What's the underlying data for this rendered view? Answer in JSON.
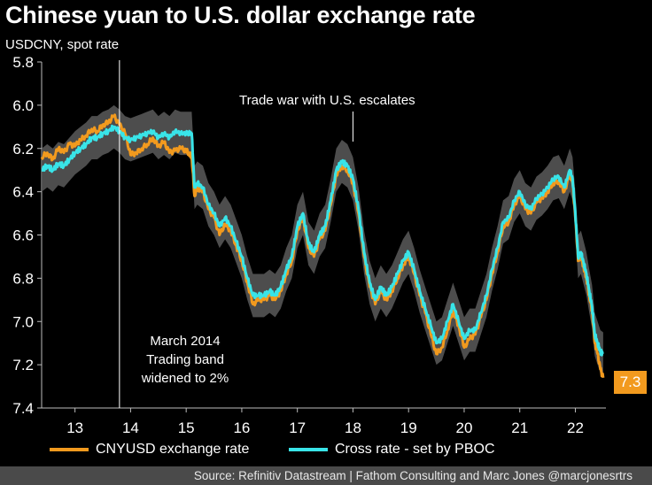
{
  "title": "Chinese yuan to U.S. dollar exchange rate",
  "subtitle": "USDCNY, spot rate",
  "annotations": {
    "trade_war": "Trade war with U.S. escalates",
    "march_2014_line1": "March 2014",
    "march_2014_line2": "Trading band",
    "march_2014_line3": "widened to 2%"
  },
  "last_value_label": "7.3",
  "legend": [
    {
      "label": "CNYUSD exchange rate",
      "color": "#f29a1e"
    },
    {
      "label": "Cross rate - set by PBOC",
      "color": "#39e4e8"
    }
  ],
  "source": "Source: Refinitiv Datastream | Fathom Consulting and Marc Jones @marcjonesrtrs",
  "chart_data": {
    "type": "line",
    "y_axis_inverted": true,
    "ylim": [
      5.8,
      7.4
    ],
    "yticks": [
      "5.8",
      "6.0",
      "6.2",
      "6.4",
      "6.6",
      "6.8",
      "7.0",
      "7.2",
      "7.4"
    ],
    "xlim": [
      2012.3,
      2022.45
    ],
    "xticks": [
      "13",
      "14",
      "15",
      "16",
      "17",
      "18",
      "19",
      "20",
      "21",
      "22"
    ],
    "xtick_values": [
      2012.9,
      2013.9,
      2014.9,
      2015.9,
      2016.9,
      2017.9,
      2018.9,
      2019.9,
      2020.9,
      2021.9
    ],
    "event_lines": [
      {
        "x": 2013.7,
        "label": "March 2014"
      },
      {
        "x": 2017.9,
        "label": "Trade war with U.S. escalates"
      }
    ],
    "band_width": 0.1,
    "band_color": "#555555",
    "series": [
      {
        "name": "CNYUSD exchange rate",
        "color": "#f29a1e",
        "points": [
          [
            2012.3,
            6.24
          ],
          [
            2012.4,
            6.22
          ],
          [
            2012.5,
            6.25
          ],
          [
            2012.6,
            6.2
          ],
          [
            2012.7,
            6.22
          ],
          [
            2012.8,
            6.18
          ],
          [
            2012.9,
            6.19
          ],
          [
            2013.0,
            6.16
          ],
          [
            2013.1,
            6.14
          ],
          [
            2013.2,
            6.11
          ],
          [
            2013.3,
            6.12
          ],
          [
            2013.4,
            6.09
          ],
          [
            2013.5,
            6.08
          ],
          [
            2013.6,
            6.05
          ],
          [
            2013.7,
            6.09
          ],
          [
            2013.8,
            6.13
          ],
          [
            2013.9,
            6.23
          ],
          [
            2014.0,
            6.22
          ],
          [
            2014.1,
            6.2
          ],
          [
            2014.2,
            6.18
          ],
          [
            2014.3,
            6.15
          ],
          [
            2014.4,
            6.19
          ],
          [
            2014.5,
            6.17
          ],
          [
            2014.6,
            6.22
          ],
          [
            2014.7,
            6.21
          ],
          [
            2014.8,
            6.2
          ],
          [
            2014.9,
            6.21
          ],
          [
            2014.95,
            6.22
          ],
          [
            2015.0,
            6.24
          ],
          [
            2015.05,
            6.42
          ],
          [
            2015.1,
            6.38
          ],
          [
            2015.2,
            6.4
          ],
          [
            2015.3,
            6.48
          ],
          [
            2015.4,
            6.52
          ],
          [
            2015.5,
            6.6
          ],
          [
            2015.6,
            6.55
          ],
          [
            2015.7,
            6.58
          ],
          [
            2015.8,
            6.65
          ],
          [
            2015.9,
            6.72
          ],
          [
            2016.0,
            6.82
          ],
          [
            2016.1,
            6.92
          ],
          [
            2016.2,
            6.9
          ],
          [
            2016.3,
            6.9
          ],
          [
            2016.4,
            6.88
          ],
          [
            2016.5,
            6.9
          ],
          [
            2016.6,
            6.86
          ],
          [
            2016.7,
            6.78
          ],
          [
            2016.8,
            6.72
          ],
          [
            2016.9,
            6.58
          ],
          [
            2017.0,
            6.52
          ],
          [
            2017.1,
            6.66
          ],
          [
            2017.2,
            6.7
          ],
          [
            2017.3,
            6.62
          ],
          [
            2017.4,
            6.58
          ],
          [
            2017.5,
            6.46
          ],
          [
            2017.6,
            6.32
          ],
          [
            2017.7,
            6.28
          ],
          [
            2017.8,
            6.3
          ],
          [
            2017.9,
            6.36
          ],
          [
            2018.0,
            6.5
          ],
          [
            2018.1,
            6.7
          ],
          [
            2018.2,
            6.84
          ],
          [
            2018.3,
            6.92
          ],
          [
            2018.4,
            6.86
          ],
          [
            2018.5,
            6.9
          ],
          [
            2018.6,
            6.86
          ],
          [
            2018.7,
            6.8
          ],
          [
            2018.8,
            6.74
          ],
          [
            2018.9,
            6.7
          ],
          [
            2019.0,
            6.78
          ],
          [
            2019.1,
            6.88
          ],
          [
            2019.2,
            6.96
          ],
          [
            2019.3,
            7.06
          ],
          [
            2019.4,
            7.15
          ],
          [
            2019.5,
            7.12
          ],
          [
            2019.6,
            7.04
          ],
          [
            2019.7,
            6.95
          ],
          [
            2019.8,
            7.02
          ],
          [
            2019.9,
            7.12
          ],
          [
            2020.0,
            7.08
          ],
          [
            2020.1,
            7.06
          ],
          [
            2020.2,
            6.98
          ],
          [
            2020.3,
            6.9
          ],
          [
            2020.4,
            6.78
          ],
          [
            2020.5,
            6.68
          ],
          [
            2020.6,
            6.56
          ],
          [
            2020.7,
            6.54
          ],
          [
            2020.8,
            6.46
          ],
          [
            2020.9,
            6.42
          ],
          [
            2021.0,
            6.48
          ],
          [
            2021.1,
            6.5
          ],
          [
            2021.2,
            6.45
          ],
          [
            2021.3,
            6.43
          ],
          [
            2021.4,
            6.4
          ],
          [
            2021.5,
            6.36
          ],
          [
            2021.6,
            6.35
          ],
          [
            2021.7,
            6.4
          ],
          [
            2021.8,
            6.32
          ],
          [
            2021.85,
            6.36
          ],
          [
            2021.9,
            6.52
          ],
          [
            2021.95,
            6.72
          ],
          [
            2022.0,
            6.7
          ],
          [
            2022.05,
            6.75
          ],
          [
            2022.1,
            6.8
          ],
          [
            2022.15,
            6.88
          ],
          [
            2022.2,
            6.95
          ],
          [
            2022.25,
            7.1
          ],
          [
            2022.3,
            7.15
          ],
          [
            2022.35,
            7.22
          ],
          [
            2022.4,
            7.26
          ]
        ]
      },
      {
        "name": "Cross rate - set by PBOC",
        "color": "#39e4e8",
        "points": [
          [
            2012.3,
            6.3
          ],
          [
            2012.4,
            6.28
          ],
          [
            2012.5,
            6.3
          ],
          [
            2012.6,
            6.27
          ],
          [
            2012.7,
            6.28
          ],
          [
            2012.8,
            6.25
          ],
          [
            2012.9,
            6.22
          ],
          [
            2013.0,
            6.2
          ],
          [
            2013.1,
            6.18
          ],
          [
            2013.2,
            6.15
          ],
          [
            2013.3,
            6.15
          ],
          [
            2013.4,
            6.13
          ],
          [
            2013.5,
            6.12
          ],
          [
            2013.6,
            6.1
          ],
          [
            2013.7,
            6.12
          ],
          [
            2013.8,
            6.15
          ],
          [
            2013.9,
            6.16
          ],
          [
            2014.0,
            6.15
          ],
          [
            2014.1,
            6.14
          ],
          [
            2014.2,
            6.13
          ],
          [
            2014.3,
            6.12
          ],
          [
            2014.4,
            6.15
          ],
          [
            2014.5,
            6.13
          ],
          [
            2014.6,
            6.15
          ],
          [
            2014.7,
            6.12
          ],
          [
            2014.8,
            6.13
          ],
          [
            2014.9,
            6.13
          ],
          [
            2014.95,
            6.13
          ],
          [
            2015.0,
            6.13
          ],
          [
            2015.05,
            6.38
          ],
          [
            2015.1,
            6.36
          ],
          [
            2015.2,
            6.38
          ],
          [
            2015.3,
            6.46
          ],
          [
            2015.4,
            6.5
          ],
          [
            2015.5,
            6.56
          ],
          [
            2015.6,
            6.52
          ],
          [
            2015.7,
            6.56
          ],
          [
            2015.8,
            6.63
          ],
          [
            2015.9,
            6.7
          ],
          [
            2016.0,
            6.8
          ],
          [
            2016.1,
            6.88
          ],
          [
            2016.2,
            6.88
          ],
          [
            2016.3,
            6.88
          ],
          [
            2016.4,
            6.86
          ],
          [
            2016.5,
            6.88
          ],
          [
            2016.6,
            6.84
          ],
          [
            2016.7,
            6.76
          ],
          [
            2016.8,
            6.7
          ],
          [
            2016.9,
            6.56
          ],
          [
            2017.0,
            6.5
          ],
          [
            2017.1,
            6.64
          ],
          [
            2017.2,
            6.68
          ],
          [
            2017.3,
            6.6
          ],
          [
            2017.4,
            6.56
          ],
          [
            2017.5,
            6.44
          ],
          [
            2017.6,
            6.3
          ],
          [
            2017.7,
            6.26
          ],
          [
            2017.8,
            6.28
          ],
          [
            2017.9,
            6.34
          ],
          [
            2018.0,
            6.48
          ],
          [
            2018.1,
            6.68
          ],
          [
            2018.2,
            6.82
          ],
          [
            2018.3,
            6.9
          ],
          [
            2018.4,
            6.84
          ],
          [
            2018.5,
            6.88
          ],
          [
            2018.6,
            6.84
          ],
          [
            2018.7,
            6.78
          ],
          [
            2018.8,
            6.72
          ],
          [
            2018.9,
            6.68
          ],
          [
            2019.0,
            6.76
          ],
          [
            2019.1,
            6.86
          ],
          [
            2019.2,
            6.94
          ],
          [
            2019.3,
            7.02
          ],
          [
            2019.4,
            7.1
          ],
          [
            2019.5,
            7.08
          ],
          [
            2019.6,
            7.0
          ],
          [
            2019.7,
            6.92
          ],
          [
            2019.8,
            7.0
          ],
          [
            2019.9,
            7.08
          ],
          [
            2020.0,
            7.04
          ],
          [
            2020.1,
            7.04
          ],
          [
            2020.2,
            6.96
          ],
          [
            2020.3,
            6.88
          ],
          [
            2020.4,
            6.76
          ],
          [
            2020.5,
            6.66
          ],
          [
            2020.6,
            6.54
          ],
          [
            2020.7,
            6.52
          ],
          [
            2020.8,
            6.44
          ],
          [
            2020.9,
            6.4
          ],
          [
            2021.0,
            6.46
          ],
          [
            2021.1,
            6.48
          ],
          [
            2021.2,
            6.43
          ],
          [
            2021.3,
            6.41
          ],
          [
            2021.4,
            6.38
          ],
          [
            2021.5,
            6.34
          ],
          [
            2021.6,
            6.33
          ],
          [
            2021.7,
            6.38
          ],
          [
            2021.8,
            6.3
          ],
          [
            2021.85,
            6.34
          ],
          [
            2021.9,
            6.5
          ],
          [
            2021.95,
            6.7
          ],
          [
            2022.0,
            6.68
          ],
          [
            2022.05,
            6.73
          ],
          [
            2022.1,
            6.78
          ],
          [
            2022.15,
            6.86
          ],
          [
            2022.2,
            6.93
          ],
          [
            2022.25,
            7.06
          ],
          [
            2022.3,
            7.1
          ],
          [
            2022.35,
            7.14
          ],
          [
            2022.4,
            7.15
          ]
        ]
      }
    ]
  }
}
